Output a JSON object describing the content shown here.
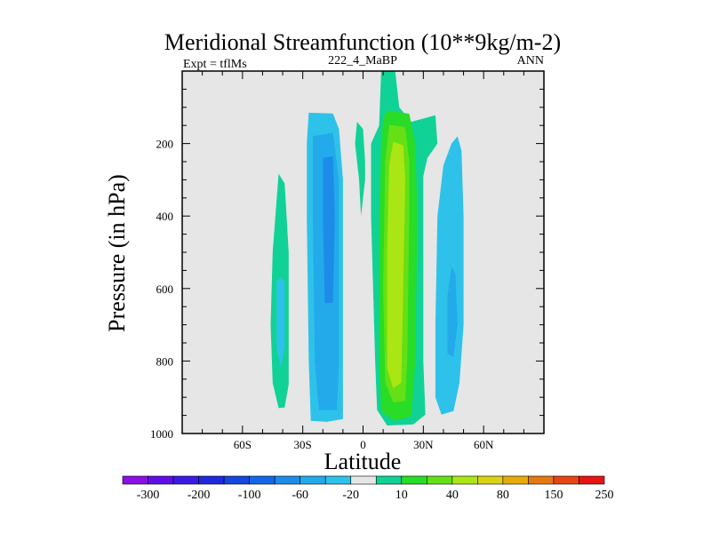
{
  "chart_data": {
    "type": "heatmap",
    "title": "Meridional Streamfunction (10**9kg/m-2)",
    "subtitle_left": "Expt = tflMs",
    "subtitle_center": "222_4_MaBP",
    "subtitle_right": "ANN",
    "xlabel": "Latitude",
    "ylabel": "Pressure (in hPa)",
    "xlim": [
      -90,
      90
    ],
    "ylim": [
      0,
      1000
    ],
    "y_inverted": true,
    "x_ticks": [
      {
        "value": -60,
        "label": "60S"
      },
      {
        "value": -30,
        "label": "30S"
      },
      {
        "value": 0,
        "label": "0"
      },
      {
        "value": 30,
        "label": "30N"
      },
      {
        "value": 60,
        "label": "60N"
      }
    ],
    "y_ticks": [
      {
        "value": 200,
        "label": "200"
      },
      {
        "value": 400,
        "label": "400"
      },
      {
        "value": 600,
        "label": "600"
      },
      {
        "value": 800,
        "label": "800"
      },
      {
        "value": 1000,
        "label": "1000"
      }
    ],
    "background_color": "#e6e6e6",
    "colorbar": {
      "colors": [
        "#8a10e6",
        "#6010e6",
        "#3c1ae6",
        "#1e28dc",
        "#1446e0",
        "#1466e6",
        "#1c8ce8",
        "#22aaea",
        "#2ec2ea",
        "#e6e6e6",
        "#10d296",
        "#28dc28",
        "#64e014",
        "#aae614",
        "#dcd214",
        "#e6aa0a",
        "#e67814",
        "#e64614",
        "#e61414"
      ],
      "labels": [
        {
          "after_index": 0,
          "text": "-300"
        },
        {
          "after_index": 2,
          "text": "-200"
        },
        {
          "after_index": 4,
          "text": "-100"
        },
        {
          "after_index": 6,
          "text": "-60"
        },
        {
          "after_index": 8,
          "text": "-20"
        },
        {
          "after_index": 10,
          "text": "10"
        },
        {
          "after_index": 12,
          "text": "40"
        },
        {
          "after_index": 14,
          "text": "80"
        },
        {
          "after_index": 16,
          "text": "150"
        },
        {
          "after_index": 18,
          "text": "250"
        }
      ]
    },
    "cells": [
      {
        "name": "sh-subtropical-outer",
        "color": "#2ec2ea",
        "points": [
          [
            -27,
            115
          ],
          [
            -15,
            117
          ],
          [
            -12,
            160
          ],
          [
            -10,
            300
          ],
          [
            -10,
            800
          ],
          [
            -10,
            960
          ],
          [
            -18,
            968
          ],
          [
            -26,
            965
          ],
          [
            -27,
            800
          ],
          [
            -28,
            400
          ],
          [
            -28,
            200
          ]
        ]
      },
      {
        "name": "sh-subtropical-mid",
        "color": "#22aaea",
        "points": [
          [
            -25,
            180
          ],
          [
            -15,
            170
          ],
          [
            -12,
            300
          ],
          [
            -12,
            800
          ],
          [
            -13,
            935
          ],
          [
            -22,
            935
          ],
          [
            -24,
            800
          ],
          [
            -25,
            400
          ]
        ]
      },
      {
        "name": "sh-subtropical-core",
        "color": "#1c8ce8",
        "points": [
          [
            -20,
            240
          ],
          [
            -15,
            235
          ],
          [
            -14,
            400
          ],
          [
            -15,
            640
          ],
          [
            -19,
            640
          ],
          [
            -20,
            400
          ]
        ]
      },
      {
        "name": "sh-midlat-outer",
        "color": "#10d296",
        "points": [
          [
            -42,
            283
          ],
          [
            -39,
            310
          ],
          [
            -37,
            500
          ],
          [
            -37,
            700
          ],
          [
            -37,
            865
          ],
          [
            -39,
            928
          ],
          [
            -42,
            930
          ],
          [
            -45,
            860
          ],
          [
            -46,
            700
          ],
          [
            -45,
            500
          ]
        ]
      },
      {
        "name": "sh-midlat-core",
        "color": "#2ec2ea",
        "points": [
          [
            -41,
            570
          ],
          [
            -39,
            580
          ],
          [
            -39,
            760
          ],
          [
            -41,
            820
          ],
          [
            -43,
            760
          ],
          [
            -43,
            580
          ]
        ]
      },
      {
        "name": "tropical-outer",
        "color": "#10d296",
        "points": [
          [
            9,
            0
          ],
          [
            16,
            0
          ],
          [
            18,
            100
          ],
          [
            24,
            140
          ],
          [
            36,
            122
          ],
          [
            37,
            200
          ],
          [
            32,
            240
          ],
          [
            30,
            290
          ],
          [
            30,
            800
          ],
          [
            31,
            948
          ],
          [
            25,
            975
          ],
          [
            12,
            978
          ],
          [
            7,
            935
          ],
          [
            6,
            800
          ],
          [
            4,
            400
          ],
          [
            4,
            200
          ],
          [
            8,
            150
          ]
        ]
      },
      {
        "name": "tropical-stripe",
        "color": "#10d296",
        "points": [
          [
            -3,
            140
          ],
          [
            0,
            160
          ],
          [
            1,
            250
          ],
          [
            1,
            300
          ],
          [
            -1,
            400
          ],
          [
            -2,
            300
          ],
          [
            -4,
            200
          ]
        ]
      },
      {
        "name": "tropical-2",
        "color": "#28dc28",
        "points": [
          [
            12,
            108
          ],
          [
            23,
            118
          ],
          [
            26,
            200
          ],
          [
            27,
            400
          ],
          [
            26,
            800
          ],
          [
            24,
            952
          ],
          [
            16,
            965
          ],
          [
            9,
            940
          ],
          [
            8,
            800
          ],
          [
            8,
            400
          ],
          [
            9,
            200
          ],
          [
            10,
            130
          ]
        ]
      },
      {
        "name": "tropical-3",
        "color": "#64e014",
        "points": [
          [
            13,
            148
          ],
          [
            21,
            155
          ],
          [
            23,
            250
          ],
          [
            23,
            400
          ],
          [
            22,
            800
          ],
          [
            21,
            910
          ],
          [
            15,
            915
          ],
          [
            11,
            860
          ],
          [
            10,
            600
          ],
          [
            11,
            250
          ]
        ]
      },
      {
        "name": "tropical-core",
        "color": "#aae614",
        "points": [
          [
            15,
            195
          ],
          [
            20,
            205
          ],
          [
            21,
            300
          ],
          [
            20,
            600
          ],
          [
            19,
            860
          ],
          [
            15,
            875
          ],
          [
            12,
            820
          ],
          [
            12,
            500
          ],
          [
            13,
            260
          ]
        ]
      },
      {
        "name": "nh-midlat-outer",
        "color": "#2ec2ea",
        "points": [
          [
            47,
            180
          ],
          [
            49,
            220
          ],
          [
            50,
            400
          ],
          [
            50,
            700
          ],
          [
            48,
            860
          ],
          [
            45,
            938
          ],
          [
            39,
            948
          ],
          [
            36,
            900
          ],
          [
            36,
            700
          ],
          [
            37,
            400
          ],
          [
            40,
            260
          ],
          [
            44,
            200
          ]
        ]
      },
      {
        "name": "nh-midlat-core",
        "color": "#22aaea",
        "points": [
          [
            44,
            540
          ],
          [
            46,
            560
          ],
          [
            47,
            700
          ],
          [
            45,
            790
          ],
          [
            42,
            780
          ],
          [
            42,
            620
          ]
        ]
      }
    ]
  }
}
